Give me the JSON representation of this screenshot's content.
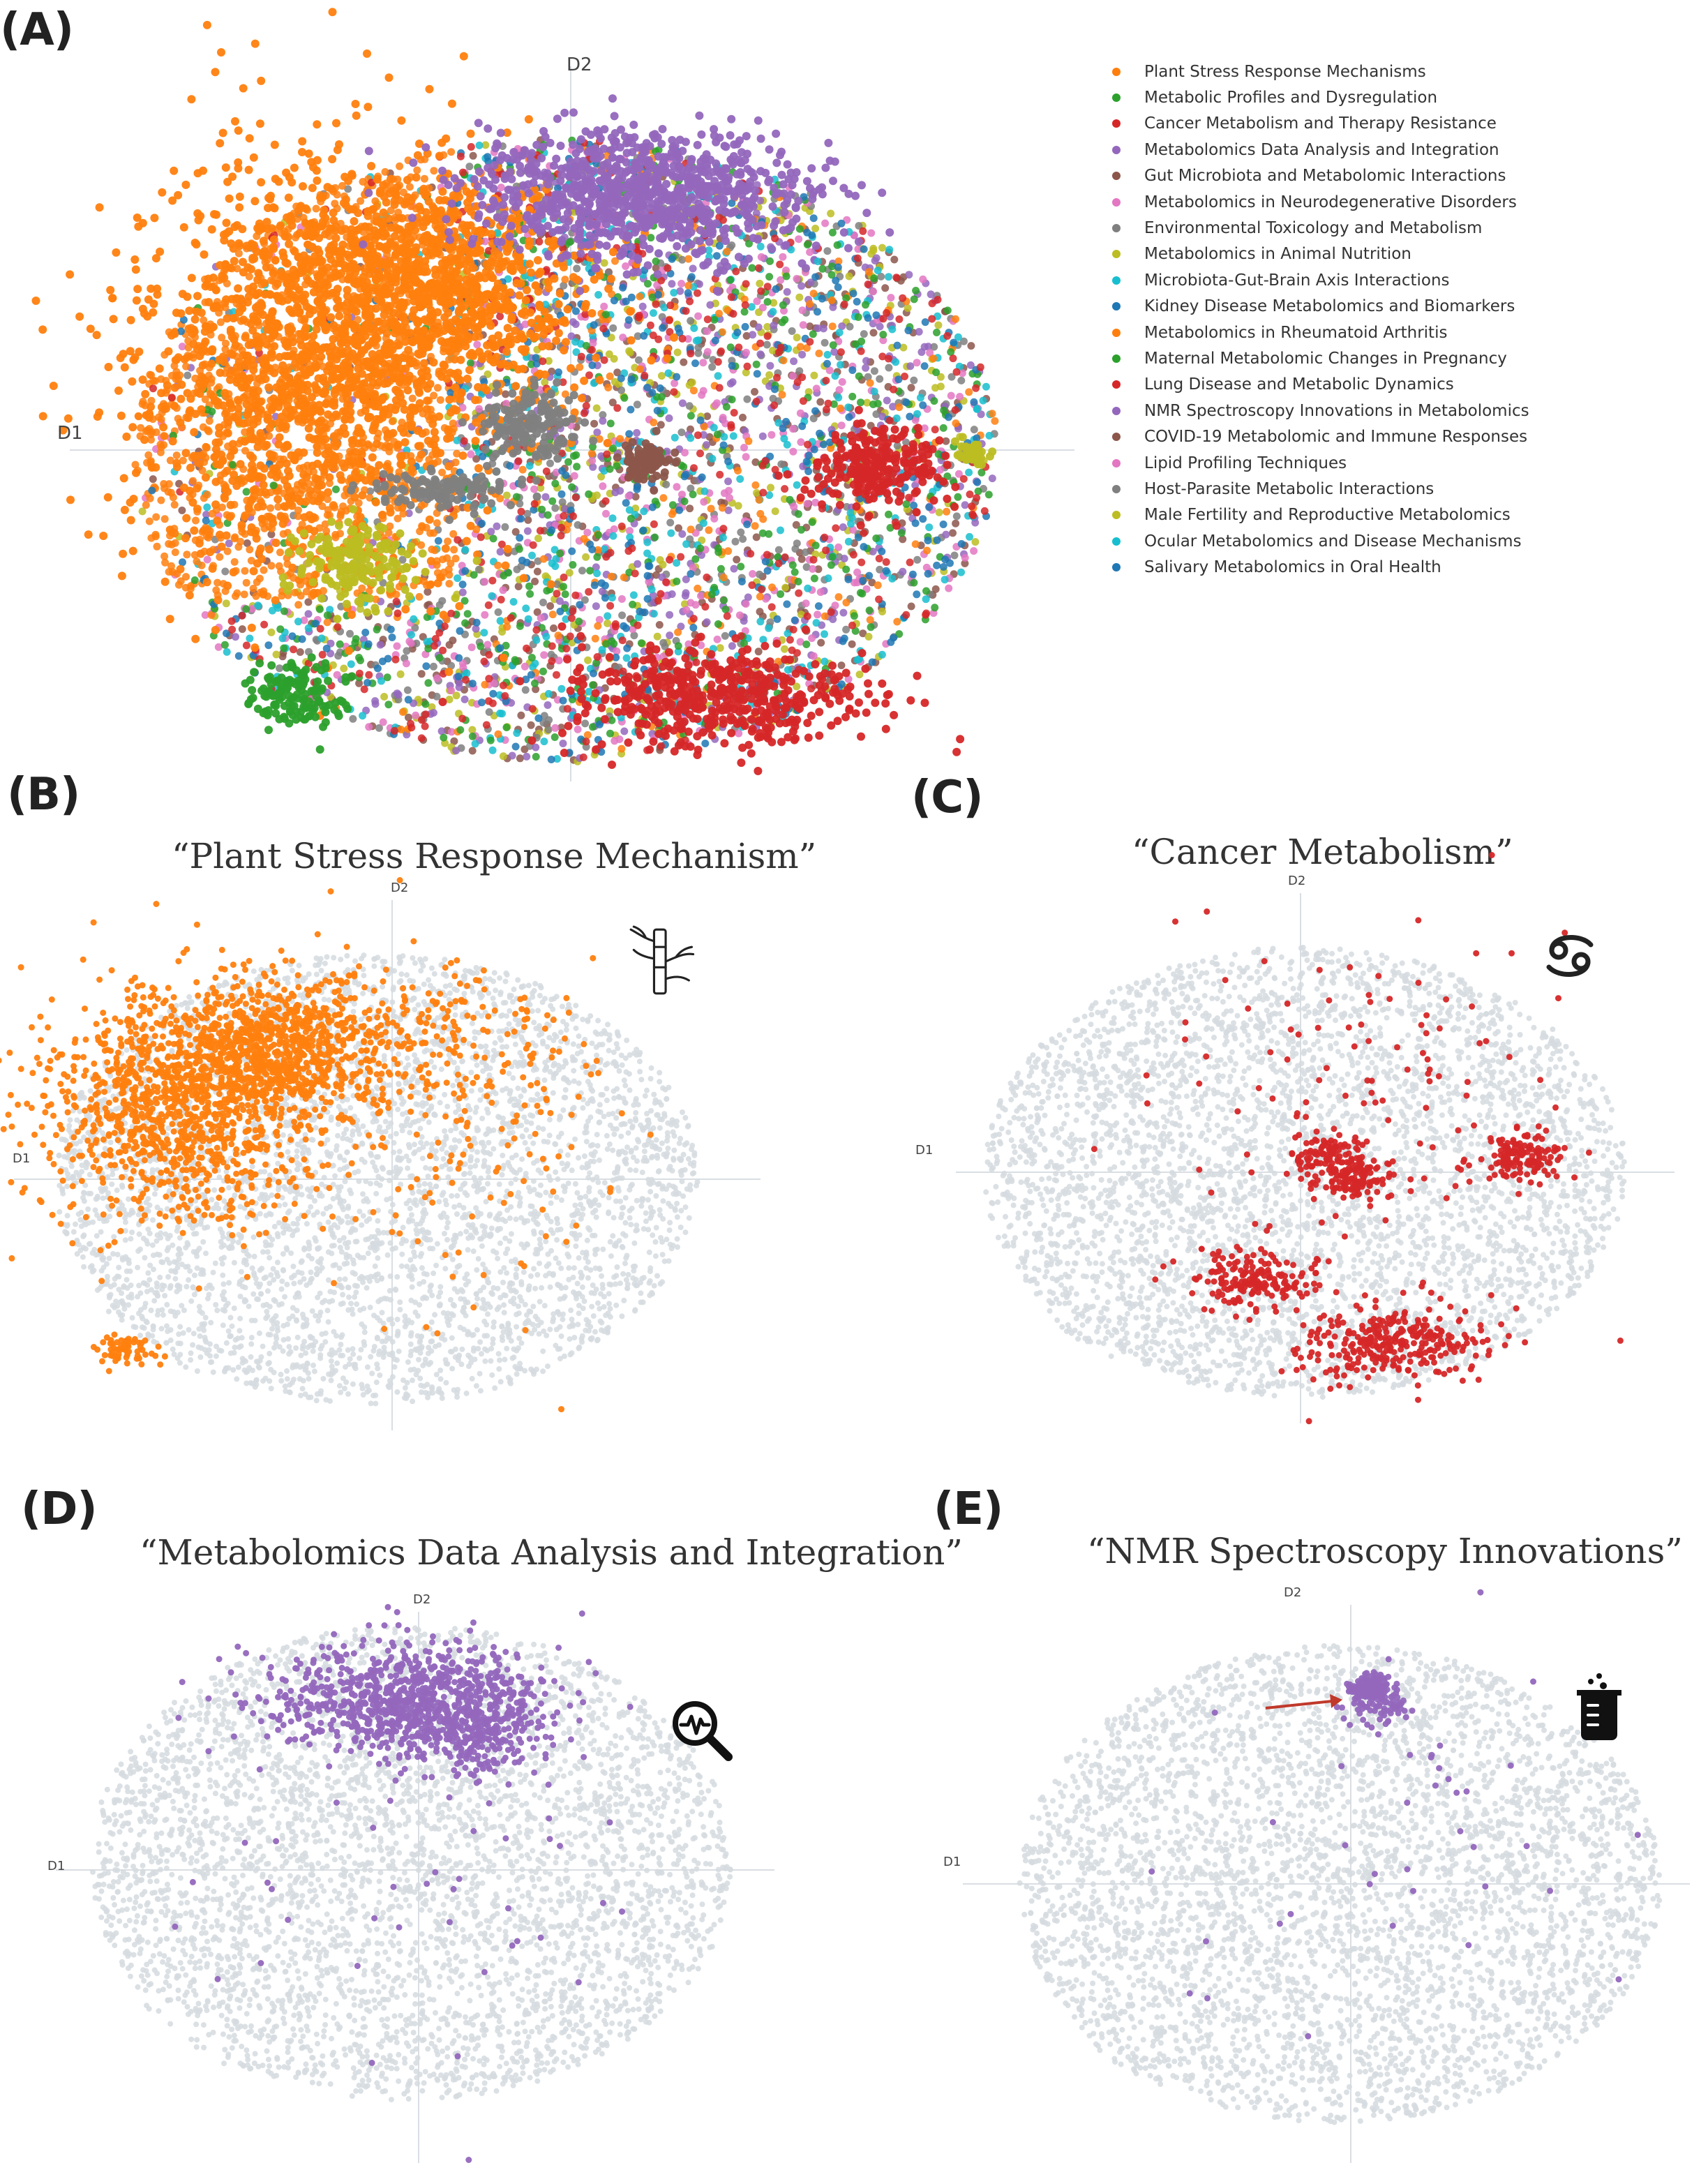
{
  "chart_data": [
    {
      "type": "scatter",
      "id": "A",
      "panel_label": "(A)",
      "title": "",
      "xlabel": "D1",
      "ylabel": "D2",
      "legend_position": "right",
      "series": [
        {
          "name": "Plant Stress Response Mechanisms",
          "color": "#ff7f0e"
        },
        {
          "name": "Metabolic Profiles and Dysregulation",
          "color": "#2ca02c"
        },
        {
          "name": "Cancer Metabolism and Therapy Resistance",
          "color": "#d62728"
        },
        {
          "name": "Metabolomics Data Analysis and Integration",
          "color": "#9467bd"
        },
        {
          "name": "Gut Microbiota and Metabolomic Interactions",
          "color": "#8c564b"
        },
        {
          "name": "Metabolomics in Neurodegenerative Disorders",
          "color": "#e377c2"
        },
        {
          "name": "Environmental Toxicology and Metabolism",
          "color": "#7f7f7f"
        },
        {
          "name": "Metabolomics in Animal Nutrition",
          "color": "#bcbd22"
        },
        {
          "name": "Microbiota-Gut-Brain Axis Interactions",
          "color": "#17becf"
        },
        {
          "name": "Kidney Disease Metabolomics and Biomarkers",
          "color": "#1f77b4"
        },
        {
          "name": "Metabolomics in Rheumatoid Arthritis",
          "color": "#ff7f0e"
        },
        {
          "name": "Maternal Metabolomic Changes in Pregnancy",
          "color": "#2ca02c"
        },
        {
          "name": "Lung Disease and Metabolic Dynamics",
          "color": "#d62728"
        },
        {
          "name": "NMR Spectroscopy Innovations in Metabolomics",
          "color": "#9467bd"
        },
        {
          "name": "COVID-19 Metabolomic and Immune Responses",
          "color": "#8c564b"
        },
        {
          "name": "Lipid Profiling Techniques",
          "color": "#e377c2"
        },
        {
          "name": "Host-Parasite Metabolic Interactions",
          "color": "#7f7f7f"
        },
        {
          "name": "Male Fertility and Reproductive Metabolomics",
          "color": "#bcbd22"
        },
        {
          "name": "Ocular Metabolomics and Disease Mechanisms",
          "color": "#17becf"
        },
        {
          "name": "Salivary Metabolomics in Oral Health",
          "color": "#1f77b4"
        }
      ]
    },
    {
      "type": "scatter",
      "id": "B",
      "panel_label": "(B)",
      "title": "“Plant Stress Response Mechanism”",
      "xlabel": "D1",
      "ylabel": "D2",
      "highlight_color": "#ff7f0e",
      "background_color": "#d5dadf",
      "icon": "bamboo-icon"
    },
    {
      "type": "scatter",
      "id": "C",
      "panel_label": "(C)",
      "title": "“Cancer Metabolism”",
      "xlabel": "D1",
      "ylabel": "D2",
      "highlight_color": "#d62728",
      "background_color": "#d5dadf",
      "icon": "cancer-zodiac-icon"
    },
    {
      "type": "scatter",
      "id": "D",
      "panel_label": "(D)",
      "title": "“Metabolomics Data Analysis and Integration”",
      "xlabel": "D1",
      "ylabel": "D2",
      "highlight_color": "#9467bd",
      "background_color": "#d5dadf",
      "icon": "magnifier-pulse-icon"
    },
    {
      "type": "scatter",
      "id": "E",
      "panel_label": "(E)",
      "title": "“NMR Spectroscopy Innovations”",
      "xlabel": "D1",
      "ylabel": "D2",
      "highlight_color": "#9467bd",
      "background_color": "#d5dadf",
      "annotation": "arrow pointing to highlighted cluster",
      "icon": "beaker-icon"
    }
  ]
}
